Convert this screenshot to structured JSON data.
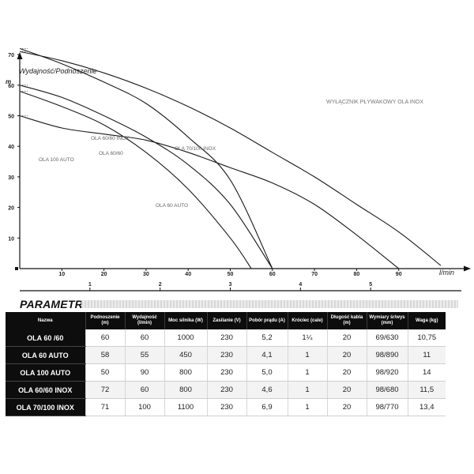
{
  "chart_data": {
    "type": "line",
    "ylabel": "Wydajność/Podnoszenie",
    "y_unit": "m",
    "x_unit": "l/min",
    "xlim": [
      0,
      103
    ],
    "ylim": [
      0,
      75
    ],
    "x_ticks": [
      10,
      20,
      30,
      40,
      50,
      60,
      70,
      80,
      90
    ],
    "y_ticks": [
      10,
      20,
      30,
      40,
      50,
      60,
      70
    ],
    "secondary_x_ticks": [
      "1",
      "2",
      "3",
      "4",
      "5"
    ],
    "annotation": "WYŁĄCZNIK PŁYWAKOWY OLA INOX",
    "grid": false,
    "series": [
      {
        "name": "OLA 70/100 INOX",
        "x": [
          0,
          10,
          20,
          30,
          40,
          50,
          60,
          70,
          80,
          90,
          100
        ],
        "y": [
          71,
          68,
          64,
          59,
          53,
          46,
          38,
          30,
          21,
          12,
          1
        ]
      },
      {
        "name": "OLA 60/60 INOX",
        "x": [
          0,
          10,
          20,
          30,
          40,
          50,
          60
        ],
        "y": [
          72,
          67,
          61,
          54,
          43,
          29,
          0
        ]
      },
      {
        "name": "OLA 60/60",
        "x": [
          0,
          10,
          20,
          30,
          40,
          50,
          60
        ],
        "y": [
          60,
          56,
          50,
          43,
          34,
          21,
          0
        ]
      },
      {
        "name": "OLA 100 AUTO",
        "x": [
          0,
          10,
          20,
          30,
          40,
          50,
          60,
          70,
          80,
          90
        ],
        "y": [
          50,
          46,
          44,
          42,
          38,
          33,
          28,
          21,
          11,
          0
        ]
      },
      {
        "name": "OLA 60 AUTO",
        "x": [
          0,
          10,
          20,
          30,
          40,
          50,
          55
        ],
        "y": [
          58,
          53,
          47,
          38,
          26,
          10,
          0
        ]
      }
    ]
  },
  "params": {
    "title": "PARAMETRY",
    "headers": [
      "Nazwa",
      "Podnoszenie (m)",
      "Wydajność (l/min)",
      "Moc silnika (W)",
      "Zasilanie (V)",
      "Pobór prądu (A)",
      "Króciec (cale)",
      "Długość kabla (m)",
      "Wymiary śr/wys (mm)",
      "Waga (kg)"
    ],
    "rows": [
      [
        "OLA 60 /60",
        "60",
        "60",
        "1000",
        "230",
        "5,2",
        "1¼",
        "20",
        "69/630",
        "10,75"
      ],
      [
        "OLA 60 AUTO",
        "58",
        "55",
        "450",
        "230",
        "4,1",
        "1",
        "20",
        "98/890",
        "11"
      ],
      [
        "OLA 100 AUTO",
        "50",
        "90",
        "800",
        "230",
        "5,0",
        "1",
        "20",
        "98/920",
        "14"
      ],
      [
        "OLA 60/60 INOX",
        "72",
        "60",
        "800",
        "230",
        "4,6",
        "1",
        "20",
        "98/680",
        "11,5"
      ],
      [
        "OLA 70/100 INOX",
        "71",
        "100",
        "1100",
        "230",
        "6,9",
        "1",
        "20",
        "98/770",
        "13,4"
      ]
    ]
  }
}
